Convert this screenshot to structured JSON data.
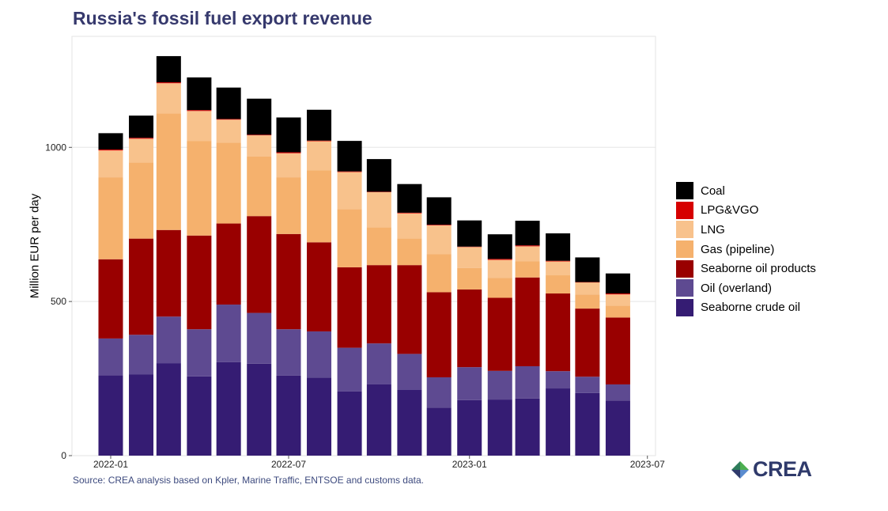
{
  "chart_data": {
    "type": "bar",
    "stacked": true,
    "title": "Russia's fossil fuel export revenue",
    "ylabel": "Million EUR per day",
    "xlabel": "",
    "ylim": [
      0,
      1360
    ],
    "yticks": [
      0,
      500,
      1000
    ],
    "ytick_labels": [
      "0",
      "500",
      "1000"
    ],
    "xticks": [
      "2022-01-01",
      "2022-07-01",
      "2023-01-01",
      "2023-07-01"
    ],
    "xtick_labels": [
      "2022-01",
      "2022-07",
      "2023-01",
      "2023-07"
    ],
    "grid": true,
    "legend_position": "right",
    "categories": [
      "2022-01",
      "2022-02",
      "2022-03",
      "2022-04",
      "2022-05",
      "2022-06",
      "2022-07",
      "2022-08",
      "2022-09",
      "2022-10",
      "2022-11",
      "2022-12",
      "2023-01",
      "2023-02",
      "2023-03",
      "2023-04",
      "2023-05",
      "2023-06"
    ],
    "series": [
      {
        "name": "Seaborne crude oil",
        "color": "#351c73",
        "values": [
          261,
          263,
          300,
          257,
          303,
          298,
          260,
          253,
          208,
          231,
          213,
          156,
          180,
          182,
          185,
          218,
          203,
          179
        ]
      },
      {
        "name": "Oil (overland)",
        "color": "#5e4a91",
        "values": [
          119,
          129,
          151,
          153,
          187,
          165,
          150,
          150,
          142,
          133,
          117,
          98,
          107,
          93,
          105,
          56,
          53,
          52
        ]
      },
      {
        "name": "Seaborne oil products",
        "color": "#990000",
        "values": [
          257,
          312,
          281,
          304,
          263,
          314,
          309,
          289,
          261,
          254,
          288,
          276,
          252,
          237,
          288,
          252,
          221,
          217
        ]
      },
      {
        "name": "Gas (pipeline)",
        "color": "#f5b16d",
        "values": [
          266,
          247,
          378,
          307,
          262,
          193,
          184,
          233,
          189,
          123,
          87,
          124,
          70,
          65,
          52,
          59,
          46,
          39
        ]
      },
      {
        "name": "LNG",
        "color": "#f8c28c",
        "values": [
          87,
          77,
          98,
          97,
          75,
          69,
          78,
          95,
          120,
          114,
          81,
          93,
          68,
          58,
          49,
          45,
          39,
          36
        ]
      },
      {
        "name": "LPG&VGO",
        "color": "#d60000",
        "values": [
          3,
          3,
          3,
          3,
          2,
          2,
          3,
          2,
          2,
          1,
          2,
          2,
          1,
          3,
          3,
          2,
          1,
          3
        ]
      },
      {
        "name": "Coal",
        "color": "#000000",
        "values": [
          53,
          72,
          85,
          106,
          102,
          117,
          113,
          100,
          99,
          106,
          93,
          89,
          85,
          80,
          80,
          89,
          80,
          65
        ]
      }
    ],
    "legend_order": [
      "Coal",
      "LPG&VGO",
      "LNG",
      "Gas (pipeline)",
      "Seaborne oil products",
      "Oil (overland)",
      "Seaborne crude oil"
    ]
  },
  "source": "Source: CREA analysis based on Kpler, Marine Traffic, ENTSOE and customs data.",
  "logo": {
    "text": "CREA",
    "colors": [
      "#2e7d5b",
      "#4caf50",
      "#2f3a6b"
    ]
  }
}
